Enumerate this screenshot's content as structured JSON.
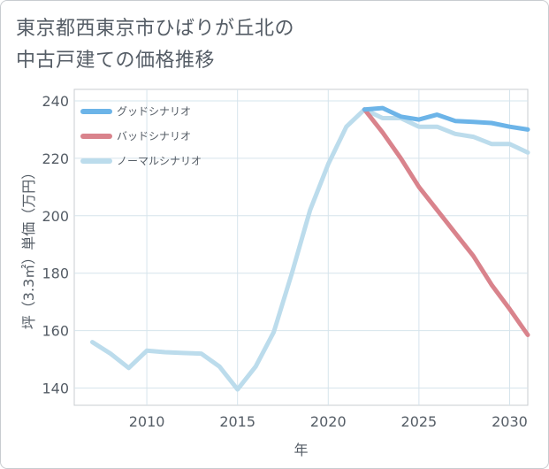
{
  "chart_data": {
    "type": "line",
    "title": "東京都西東京市ひばりが丘北の中古戸建ての価格推移",
    "title_lines": [
      "東京都西東京市ひばりが丘北の",
      "中古戸建ての価格推移"
    ],
    "xlabel": "年",
    "ylabel": "坪（3.3㎡）単価（万円）",
    "xlim": [
      2006,
      2031
    ],
    "ylim": [
      134,
      244
    ],
    "xticks": [
      2010,
      2015,
      2020,
      2025,
      2030
    ],
    "yticks": [
      140,
      160,
      180,
      200,
      220,
      240
    ],
    "grid": true,
    "legend_position": "top-left",
    "series": [
      {
        "name": "グッドシナリオ",
        "color": "#6cb4e8",
        "x": [
          2022,
          2023,
          2024,
          2025,
          2026,
          2027,
          2028,
          2029,
          2030,
          2031
        ],
        "values": [
          237,
          237.5,
          234.5,
          233.5,
          235.2,
          233,
          232.7,
          232.3,
          231,
          230
        ]
      },
      {
        "name": "バッドシナリオ",
        "color": "#d9838c",
        "x": [
          2022,
          2023,
          2024,
          2025,
          2026,
          2027,
          2028,
          2029,
          2030,
          2031
        ],
        "values": [
          237,
          229,
          220,
          210,
          202,
          194,
          186,
          176,
          167.5,
          158.5
        ]
      },
      {
        "name": "ノーマルシナリオ",
        "color": "#bcdcec",
        "x": [
          2007,
          2008,
          2009,
          2010,
          2011,
          2012,
          2013,
          2014,
          2015,
          2016,
          2017,
          2018,
          2019,
          2020,
          2021,
          2022,
          2023,
          2024,
          2025,
          2026,
          2027,
          2028,
          2029,
          2030,
          2031
        ],
        "values": [
          156,
          152,
          147,
          153,
          152.5,
          152.2,
          152,
          147.5,
          139.5,
          147.5,
          159.5,
          180,
          202,
          218,
          231,
          237,
          234,
          234,
          231,
          231,
          228.5,
          227.5,
          225,
          225,
          222
        ]
      }
    ]
  }
}
